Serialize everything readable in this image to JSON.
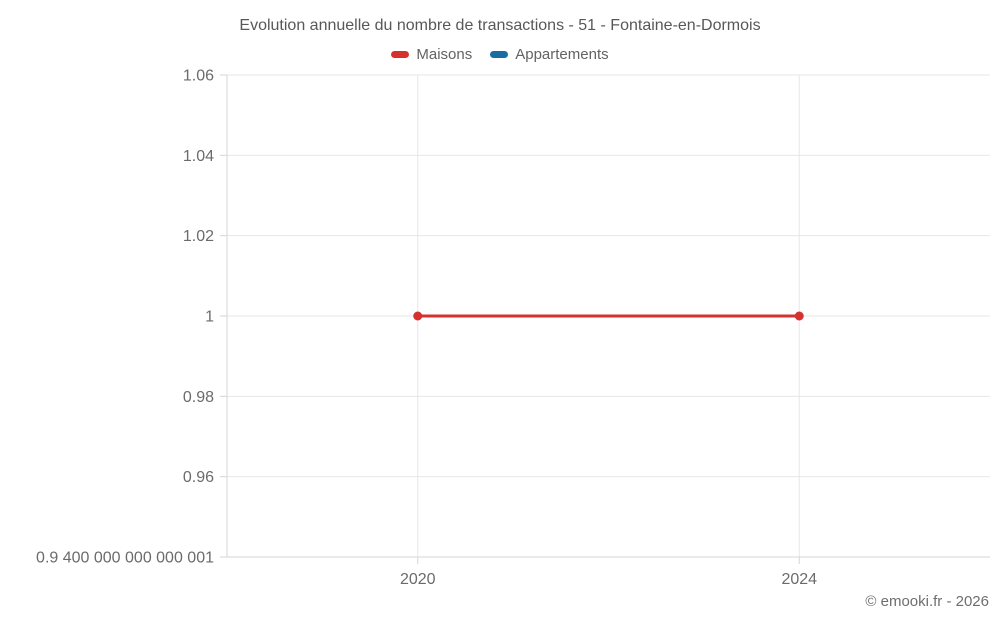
{
  "title": "Evolution annuelle du nombre de transactions - 51 - Fontaine-en-Dormois",
  "legend": {
    "items": [
      {
        "id": "maisons",
        "label": "Maisons",
        "color": "#d5312f"
      },
      {
        "id": "appartements",
        "label": "Appartements",
        "color": "#1a6da3"
      }
    ]
  },
  "footer": {
    "copyright": "© emooki.fr - 2026"
  },
  "colors": {
    "grid": "#e7e7e7",
    "axis": "#d6d6d6",
    "tick_text": "#6b6b6b",
    "title_text": "#58585a",
    "series_maisons": "#d5312f",
    "series_appartements": "#1a6da3"
  },
  "chart_data": {
    "type": "line",
    "title": "Evolution annuelle du nombre de transactions - 51 - Fontaine-en-Dormois",
    "xlabel": "",
    "ylabel": "",
    "x": [
      2020,
      2024
    ],
    "xlim": [
      2018,
      2026
    ],
    "ylim": [
      0.94,
      1.06
    ],
    "grid": true,
    "legend_position": "top",
    "xticks": [
      {
        "value": 2020,
        "label": "2020"
      },
      {
        "value": 2024,
        "label": "2024"
      }
    ],
    "yticks": [
      {
        "value": 1.06,
        "label": "1.06"
      },
      {
        "value": 1.04,
        "label": "1.04"
      },
      {
        "value": 1.02,
        "label": "1.02"
      },
      {
        "value": 1.0,
        "label": "1"
      },
      {
        "value": 0.98,
        "label": "0.98"
      },
      {
        "value": 0.96,
        "label": "0.96"
      },
      {
        "value": 0.94,
        "label": "0.9 400 000 000 000 001"
      }
    ],
    "series": [
      {
        "name": "Maisons",
        "color": "#d5312f",
        "values": [
          1,
          1
        ]
      },
      {
        "name": "Appartements",
        "color": "#1a6da3",
        "values": []
      }
    ]
  }
}
